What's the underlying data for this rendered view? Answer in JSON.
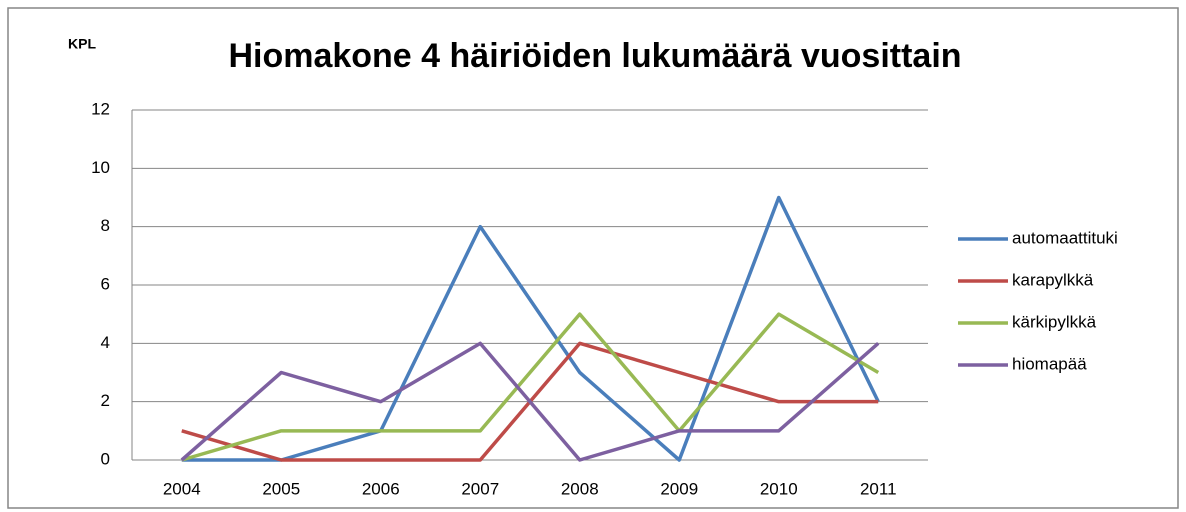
{
  "chart_data": {
    "type": "line",
    "title": "Hiomakone 4 häiriöiden lukumäärä vuosittain",
    "y_label": "KPL",
    "categories": [
      "2004",
      "2005",
      "2006",
      "2007",
      "2008",
      "2009",
      "2010",
      "2011"
    ],
    "series": [
      {
        "name": "automaattituki",
        "color": "#4a7ebb",
        "values": [
          0,
          0,
          1,
          8,
          3,
          0,
          9,
          2
        ]
      },
      {
        "name": "karapylkkä",
        "color": "#be4b48",
        "values": [
          1,
          0,
          0,
          0,
          4,
          3,
          2,
          2
        ]
      },
      {
        "name": "kärkipylkkä",
        "color": "#98b954",
        "values": [
          0,
          1,
          1,
          1,
          5,
          1,
          5,
          3
        ]
      },
      {
        "name": "hiomapää",
        "color": "#7d60a0",
        "values": [
          0,
          3,
          2,
          4,
          0,
          1,
          1,
          4
        ]
      }
    ],
    "ylim": [
      0,
      12
    ],
    "yticks": [
      0,
      2,
      4,
      6,
      8,
      10,
      12
    ],
    "grid": true,
    "legend": "right"
  }
}
